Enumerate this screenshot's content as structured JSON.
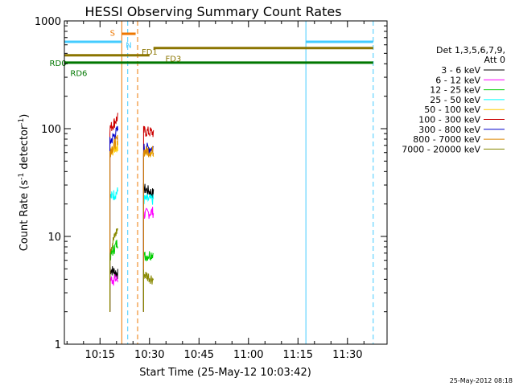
{
  "chart_data": {
    "type": "line",
    "title": "HESSI Observing Summary Count Rates",
    "xlabel": "Start Time (25-May-12 10:03:42)",
    "ylabel_main": "Count Rate (s",
    "ylabel_sup1": "-1",
    "ylabel_mid": " detector",
    "ylabel_sup2": "-1",
    "ylabel_end": ")",
    "y_scale": "log",
    "ylim": [
      1,
      1000
    ],
    "xlim_minutes": [
      10.07,
      11.7
    ],
    "y_ticks": [
      {
        "value": 1,
        "label": "1"
      },
      {
        "value": 10,
        "label": "10"
      },
      {
        "value": 100,
        "label": "100"
      },
      {
        "value": 1000,
        "label": "1000"
      }
    ],
    "x_ticks": [
      {
        "value": 10.25,
        "label": "10:15"
      },
      {
        "value": 10.5,
        "label": "10:30"
      },
      {
        "value": 10.75,
        "label": "10:45"
      },
      {
        "value": 11.0,
        "label": "11:00"
      },
      {
        "value": 11.25,
        "label": "11:15"
      },
      {
        "value": 11.5,
        "label": "11:30"
      }
    ],
    "legend": {
      "header1": "Det 1,3,5,6,7,9,",
      "header2": "Att 0",
      "placement": "right"
    },
    "series": [
      {
        "name": "3 - 6 keV",
        "color": "#000000",
        "segments": [
          [
            [
              10.3,
              5
            ],
            [
              10.34,
              4.5
            ]
          ],
          [
            [
              10.47,
              28
            ],
            [
              10.52,
              25
            ]
          ]
        ]
      },
      {
        "name": "6 - 12 keV",
        "color": "#ff00ff",
        "segments": [
          [
            [
              10.3,
              4
            ],
            [
              10.34,
              4
            ]
          ],
          [
            [
              10.47,
              16
            ],
            [
              10.52,
              17
            ]
          ]
        ]
      },
      {
        "name": "12 - 25 keV",
        "color": "#00cc00",
        "segments": [
          [
            [
              10.3,
              6.5
            ],
            [
              10.34,
              9
            ]
          ],
          [
            [
              10.47,
              6.5
            ],
            [
              10.52,
              7
            ]
          ]
        ]
      },
      {
        "name": "25 - 50 keV",
        "color": "#00ffff",
        "segments": [
          [
            [
              10.3,
              23
            ],
            [
              10.34,
              26
            ]
          ],
          [
            [
              10.47,
              22
            ],
            [
              10.52,
              22
            ]
          ]
        ]
      },
      {
        "name": "50 - 100 keV",
        "color": "#ffcc00",
        "segments": [
          [
            [
              10.3,
              60
            ],
            [
              10.34,
              70
            ]
          ],
          [
            [
              10.47,
              60
            ],
            [
              10.52,
              62
            ]
          ]
        ]
      },
      {
        "name": "100 - 300 keV",
        "color": "#cc0000",
        "segments": [
          [
            [
              10.3,
              100
            ],
            [
              10.34,
              128
            ]
          ],
          [
            [
              10.47,
              95
            ],
            [
              10.52,
              92
            ]
          ]
        ]
      },
      {
        "name": "300 - 800 keV",
        "color": "#0000cc",
        "segments": [
          [
            [
              10.3,
              75
            ],
            [
              10.34,
              98
            ]
          ],
          [
            [
              10.47,
              66
            ],
            [
              10.52,
              66
            ]
          ]
        ]
      },
      {
        "name": "800 - 7000 keV",
        "color": "#dd8800",
        "segments": [
          [
            [
              10.3,
              62
            ],
            [
              10.34,
              80
            ]
          ],
          [
            [
              10.47,
              62
            ],
            [
              10.52,
              62
            ]
          ]
        ]
      },
      {
        "name": "7000 - 20000 keV",
        "color": "#888800",
        "segments": [
          [
            [
              10.3,
              7.5
            ],
            [
              10.34,
              12
            ]
          ],
          [
            [
              10.47,
              4.5
            ],
            [
              10.52,
              4
            ]
          ]
        ]
      }
    ],
    "flag_bars": [
      {
        "label": "S",
        "color": "#ee7700",
        "y": 760,
        "x_start": 10.36,
        "x_end": 10.43
      },
      {
        "label": "N",
        "color": "#44ccff",
        "y": 640,
        "x_start": 10.07,
        "x_end": 10.36
      },
      {
        "label": "N",
        "color": "#44ccff",
        "y": 640,
        "x_start": 11.29,
        "x_end": 11.63
      },
      {
        "label": "FD1",
        "color": "#8b7500",
        "y": 560,
        "x_start": 10.52,
        "x_end": 11.63
      },
      {
        "label": "FD3",
        "color": "#8b7500",
        "y": 480,
        "x_start": 10.07,
        "x_end": 10.5
      },
      {
        "label": "RD0",
        "color": "#007700",
        "y": 410,
        "x_start": 10.07,
        "x_end": 11.63
      }
    ],
    "flag_labels": [
      {
        "text": "S",
        "color": "#ee7700",
        "x": 10.3,
        "y": 780
      },
      {
        "text": "N",
        "color": "#44ccff",
        "x": 10.38,
        "y": 600
      },
      {
        "text": "FD1",
        "color": "#8b7500",
        "x": 10.46,
        "y": 520
      },
      {
        "text": "FD3",
        "color": "#8b7500",
        "x": 10.58,
        "y": 450
      },
      {
        "text": "RD0",
        "color": "#007700",
        "x": 9.995,
        "y": 410
      },
      {
        "text": "RD6",
        "color": "#007700",
        "x": 10.1,
        "y": 330
      }
    ],
    "vertical_lines": [
      {
        "x": 10.07,
        "color": "#44ccff",
        "style": "solid"
      },
      {
        "x": 10.36,
        "color": "#ee7700",
        "style": "solid"
      },
      {
        "x": 10.39,
        "color": "#44ccff",
        "style": "dashed"
      },
      {
        "x": 10.44,
        "color": "#ee7700",
        "style": "dashed"
      },
      {
        "x": 11.29,
        "color": "#44ccff",
        "style": "solid"
      },
      {
        "x": 11.63,
        "color": "#44ccff",
        "style": "dashed"
      }
    ],
    "footer_date": "25-May-2012 08:18"
  }
}
